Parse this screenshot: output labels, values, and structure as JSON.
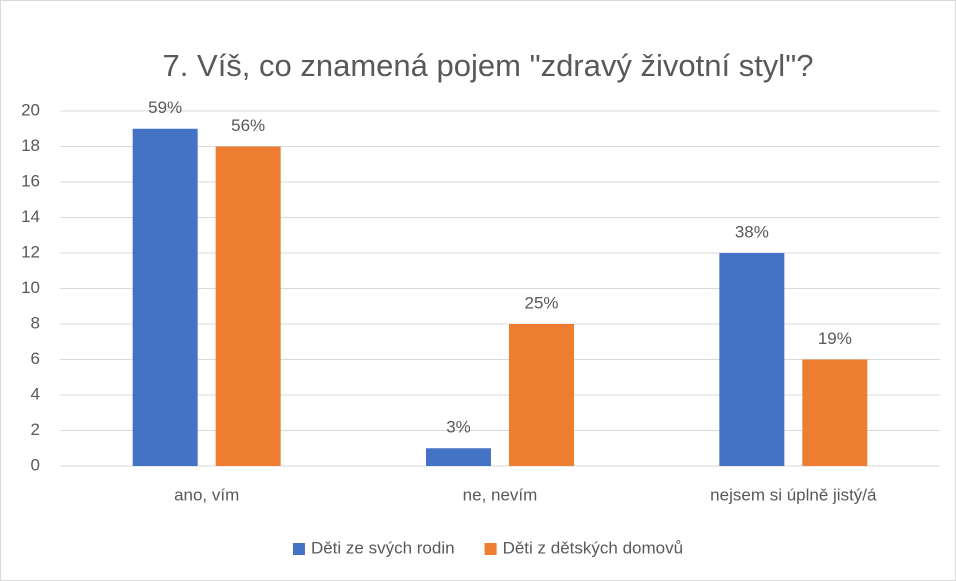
{
  "chart_data": {
    "type": "bar",
    "title": "7. Víš, co znamená pojem \"zdravý životní styl\"?",
    "categories": [
      "ano, vím",
      "ne, nevím",
      "nejsem si úplně jistý/á"
    ],
    "series": [
      {
        "name": "Děti ze svých rodin",
        "color": "#4472c4",
        "values": [
          19,
          1,
          12
        ],
        "value_labels": [
          "59%",
          "3%",
          "38%"
        ]
      },
      {
        "name": "Děti z dětských domovů",
        "color": "#ed7d31",
        "values": [
          18,
          8,
          6
        ],
        "value_labels": [
          "56%",
          "25%",
          "19%"
        ]
      }
    ],
    "ylim": [
      0,
      20
    ],
    "yticks": [
      0,
      2,
      4,
      6,
      8,
      10,
      12,
      14,
      16,
      18,
      20
    ],
    "grid": true,
    "legend": "bottom"
  }
}
